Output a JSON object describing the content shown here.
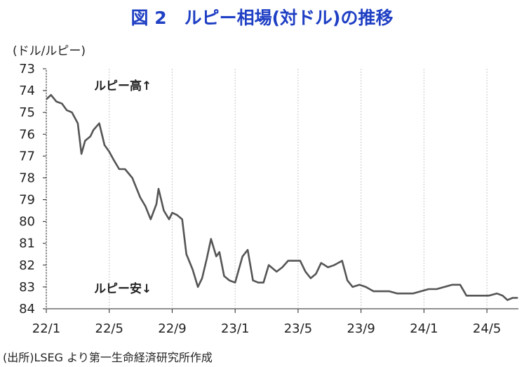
{
  "chart_data": {
    "type": "line",
    "title": "図 2　ルピー相場(対ドル)の推移",
    "ylabel": "(ドル/ルピー)",
    "y_inverted": true,
    "ylim": [
      73,
      84
    ],
    "yticks": [
      73,
      74,
      75,
      76,
      77,
      78,
      79,
      80,
      81,
      82,
      83,
      84
    ],
    "xticks": [
      "22/1",
      "22/5",
      "22/9",
      "23/1",
      "23/5",
      "23/9",
      "24/1",
      "24/5"
    ],
    "x_start": "2022-01",
    "x_end": "2024-07",
    "grid": "vertical",
    "annotations": [
      "ルピー高↑",
      "ルピー安↓"
    ],
    "source": "(出所)LSEG より第一生命経済研究所作成",
    "series": [
      {
        "color": "#555555",
        "points": [
          [
            "2022-01-01",
            74.4
          ],
          [
            "2022-01-10",
            74.2
          ],
          [
            "2022-01-20",
            74.5
          ],
          [
            "2022-02-01",
            74.6
          ],
          [
            "2022-02-10",
            74.9
          ],
          [
            "2022-02-20",
            75.0
          ],
          [
            "2022-03-01",
            75.5
          ],
          [
            "2022-03-08",
            76.9
          ],
          [
            "2022-03-15",
            76.3
          ],
          [
            "2022-03-25",
            76.1
          ],
          [
            "2022-04-01",
            75.8
          ],
          [
            "2022-04-12",
            75.5
          ],
          [
            "2022-04-22",
            76.5
          ],
          [
            "2022-05-01",
            76.8
          ],
          [
            "2022-05-10",
            77.2
          ],
          [
            "2022-05-20",
            77.6
          ],
          [
            "2022-06-01",
            77.6
          ],
          [
            "2022-06-15",
            78.0
          ],
          [
            "2022-06-30",
            78.9
          ],
          [
            "2022-07-10",
            79.3
          ],
          [
            "2022-07-20",
            79.9
          ],
          [
            "2022-08-01",
            79.2
          ],
          [
            "2022-08-05",
            78.5
          ],
          [
            "2022-08-15",
            79.5
          ],
          [
            "2022-08-25",
            79.9
          ],
          [
            "2022-09-01",
            79.6
          ],
          [
            "2022-09-10",
            79.7
          ],
          [
            "2022-09-20",
            79.9
          ],
          [
            "2022-09-28",
            81.5
          ],
          [
            "2022-10-10",
            82.2
          ],
          [
            "2022-10-20",
            83.0
          ],
          [
            "2022-10-28",
            82.6
          ],
          [
            "2022-11-07",
            81.7
          ],
          [
            "2022-11-15",
            80.8
          ],
          [
            "2022-11-25",
            81.6
          ],
          [
            "2022-12-01",
            81.4
          ],
          [
            "2022-12-10",
            82.5
          ],
          [
            "2022-12-20",
            82.7
          ],
          [
            "2023-01-01",
            82.8
          ],
          [
            "2023-01-15",
            81.6
          ],
          [
            "2023-01-25",
            81.3
          ],
          [
            "2023-02-05",
            82.7
          ],
          [
            "2023-02-15",
            82.8
          ],
          [
            "2023-02-25",
            82.8
          ],
          [
            "2023-03-05",
            82.0
          ],
          [
            "2023-03-20",
            82.3
          ],
          [
            "2023-04-01",
            82.1
          ],
          [
            "2023-04-12",
            81.8
          ],
          [
            "2023-04-25",
            81.8
          ],
          [
            "2023-05-05",
            81.8
          ],
          [
            "2023-05-15",
            82.3
          ],
          [
            "2023-05-25",
            82.6
          ],
          [
            "2023-06-05",
            82.4
          ],
          [
            "2023-06-15",
            81.9
          ],
          [
            "2023-06-28",
            82.1
          ],
          [
            "2023-07-10",
            82.0
          ],
          [
            "2023-07-25",
            81.8
          ],
          [
            "2023-08-05",
            82.7
          ],
          [
            "2023-08-15",
            83.0
          ],
          [
            "2023-08-28",
            82.9
          ],
          [
            "2023-09-10",
            83.0
          ],
          [
            "2023-09-25",
            83.2
          ],
          [
            "2023-10-10",
            83.2
          ],
          [
            "2023-10-25",
            83.2
          ],
          [
            "2023-11-10",
            83.3
          ],
          [
            "2023-11-25",
            83.3
          ],
          [
            "2023-12-10",
            83.3
          ],
          [
            "2023-12-25",
            83.2
          ],
          [
            "2024-01-10",
            83.1
          ],
          [
            "2024-01-25",
            83.1
          ],
          [
            "2024-02-10",
            83.0
          ],
          [
            "2024-02-25",
            82.9
          ],
          [
            "2024-03-10",
            82.9
          ],
          [
            "2024-03-22",
            83.4
          ],
          [
            "2024-04-05",
            83.4
          ],
          [
            "2024-04-20",
            83.4
          ],
          [
            "2024-05-05",
            83.4
          ],
          [
            "2024-05-20",
            83.3
          ],
          [
            "2024-06-01",
            83.4
          ],
          [
            "2024-06-10",
            83.6
          ],
          [
            "2024-06-20",
            83.5
          ],
          [
            "2024-06-30",
            83.5
          ]
        ]
      }
    ]
  }
}
